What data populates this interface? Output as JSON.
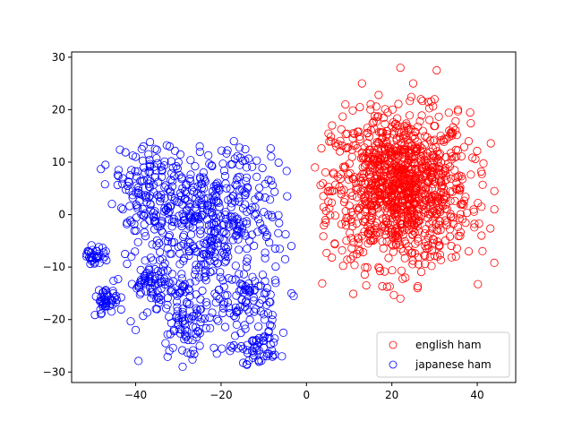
{
  "chart_data": {
    "type": "scatter",
    "title": "",
    "xlabel": "",
    "ylabel": "",
    "xlim": [
      -55,
      49
    ],
    "ylim": [
      -32,
      31
    ],
    "grid": false,
    "legend_position": "lower-right",
    "x_ticks": [
      -40,
      -20,
      0,
      20,
      40
    ],
    "y_ticks": [
      -30,
      -20,
      -10,
      0,
      10,
      20,
      30
    ],
    "x_tick_labels": [
      "−40",
      "−20",
      "0",
      "20",
      "40"
    ],
    "y_tick_labels": [
      "−30",
      "−20",
      "−10",
      "0",
      "10",
      "20",
      "30"
    ],
    "marker": "hollow-circle",
    "series": [
      {
        "name": "english ham",
        "color": "#ff0000",
        "center": [
          22,
          5
        ],
        "spread": [
          8.5,
          7.5
        ],
        "x_range": [
          2,
          44
        ],
        "y_range": [
          -16,
          28
        ],
        "sample_points": [
          [
            22,
            28
          ],
          [
            30.5,
            27.5
          ],
          [
            13,
            25
          ],
          [
            25,
            25
          ],
          [
            35.5,
            20
          ],
          [
            30,
            22
          ],
          [
            15,
            20
          ],
          [
            6,
            17
          ],
          [
            38,
            14
          ],
          [
            2,
            9
          ],
          [
            44,
            4.5
          ],
          [
            44,
            1
          ],
          [
            41,
            1.5
          ],
          [
            41,
            -4
          ],
          [
            38,
            -7
          ],
          [
            10.5,
            0.5
          ],
          [
            4.5,
            -1.5
          ],
          [
            14,
            -13.5
          ],
          [
            22,
            -16
          ],
          [
            26,
            -14
          ],
          [
            35,
            -8
          ],
          [
            7,
            13
          ],
          [
            20,
            5
          ],
          [
            22,
            6
          ],
          [
            24,
            4
          ],
          [
            18,
            2
          ],
          [
            26,
            8
          ],
          [
            12,
            0.8
          ]
        ]
      },
      {
        "name": "japanese ham",
        "color": "#0000ff",
        "center": [
          -25,
          -3
        ],
        "spread": [
          12,
          11
        ],
        "x_range": [
          -52,
          -3
        ],
        "y_range": [
          -29,
          14
        ],
        "sample_points": [
          [
            -51.5,
            -8
          ],
          [
            -49,
            -7
          ],
          [
            -47,
            -7
          ],
          [
            -45.5,
            -16.5
          ],
          [
            -47,
            -17.5
          ],
          [
            -43,
            1
          ],
          [
            -42,
            -1.5
          ],
          [
            -40,
            -22
          ],
          [
            -40,
            11
          ],
          [
            -44,
            8.5
          ],
          [
            -41,
            8.5
          ],
          [
            -37,
            11.5
          ],
          [
            -37.5,
            3.5
          ],
          [
            -30,
            10
          ],
          [
            -25,
            13
          ],
          [
            -17,
            14
          ],
          [
            -14,
            9
          ],
          [
            -24,
            5
          ],
          [
            -24,
            3
          ],
          [
            -23,
            -3
          ],
          [
            -35.5,
            -13.5
          ],
          [
            -35,
            -18
          ],
          [
            -33,
            -24.5
          ],
          [
            -29,
            -19
          ],
          [
            -29,
            -29
          ],
          [
            -25,
            -25
          ],
          [
            -21,
            -26.5
          ],
          [
            -16,
            -25.5
          ],
          [
            -14,
            -28.5
          ],
          [
            -10,
            -27
          ],
          [
            -10,
            -24
          ],
          [
            -10,
            -19
          ],
          [
            -5,
            -8.5
          ],
          [
            -3.5,
            -15
          ],
          [
            -3,
            -15.5
          ],
          [
            -4.5,
            3.5
          ],
          [
            -8,
            -0.5
          ],
          [
            -10,
            0.5
          ],
          [
            -14,
            -10
          ],
          [
            -19,
            -8
          ],
          [
            -26,
            -7
          ],
          [
            -33,
            -5
          ],
          [
            -41,
            -8
          ]
        ]
      }
    ]
  }
}
